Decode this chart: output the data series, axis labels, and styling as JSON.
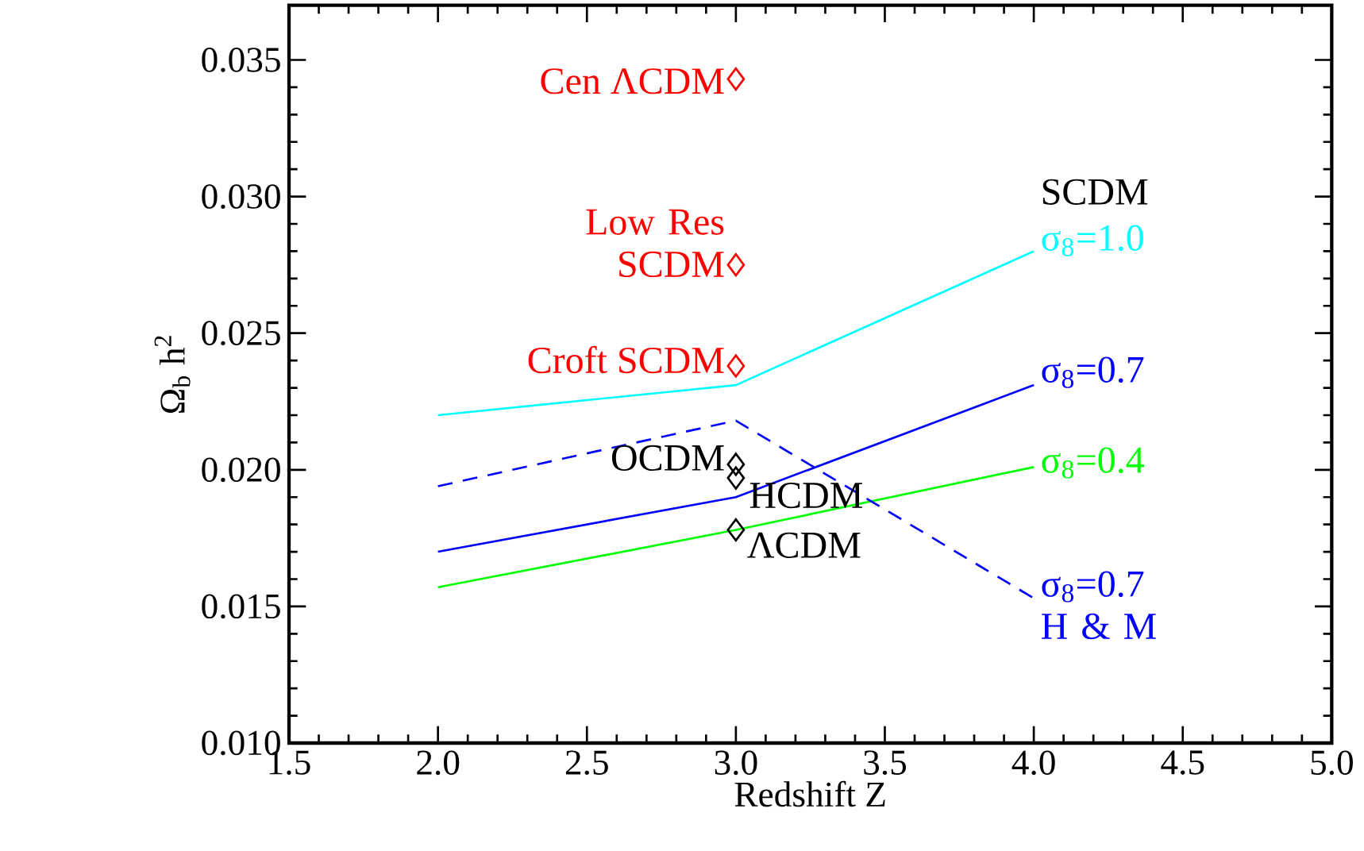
{
  "chart_data": {
    "type": "line",
    "xlabel": "Redshift Z",
    "ylabel": "Ω$_{b}$ h$^{2}$",
    "xlim": [
      1.5,
      5.0
    ],
    "xticks": [
      {
        "value": 1.5,
        "label": "1.5"
      },
      {
        "value": 2.0,
        "label": "2.0"
      },
      {
        "value": 2.5,
        "label": "2.5"
      },
      {
        "value": 3.0,
        "label": "3.0"
      },
      {
        "value": 3.5,
        "label": "3.5"
      },
      {
        "value": 4.0,
        "label": "4.0"
      },
      {
        "value": 4.5,
        "label": "4.5"
      },
      {
        "value": 5.0,
        "label": "5.0"
      }
    ],
    "ylim": [
      0.01,
      0.037
    ],
    "yticks": [
      {
        "value": 0.01,
        "label": "0.010"
      },
      {
        "value": 0.015,
        "label": "0.015"
      },
      {
        "value": 0.02,
        "label": "0.020"
      },
      {
        "value": 0.025,
        "label": "0.025"
      },
      {
        "value": 0.03,
        "label": "0.030"
      },
      {
        "value": 0.035,
        "label": "0.035"
      }
    ],
    "series": [
      {
        "name": "σ$_{8}$=1.0",
        "color": "#00ffff",
        "line_style": "solid",
        "x": [
          2,
          3,
          4
        ],
        "values": [
          0.022,
          0.0231,
          0.028
        ]
      },
      {
        "name": "σ$_{8}$=0.7",
        "color": "#0000ff",
        "line_style": "solid",
        "x": [
          2,
          3,
          4
        ],
        "values": [
          0.017,
          0.019,
          0.0231
        ]
      },
      {
        "name": "σ$_{8}$=0.4",
        "color": "#00ff00",
        "line_style": "solid",
        "x": [
          2,
          3,
          4
        ],
        "values": [
          0.0157,
          0.0178,
          0.0201
        ]
      },
      {
        "name": "σ$_{8}$=0.7 H & M",
        "color": "#0000ff",
        "line_style": "dashed",
        "x": [
          2,
          3,
          4
        ],
        "values": [
          0.0194,
          0.0218,
          0.0153
        ]
      },
      {
        "type": "scatter",
        "name": "Cen ΛCDM",
        "color": "#ff0000",
        "marker": "diamond",
        "x": [
          3
        ],
        "values": [
          0.0343
        ]
      },
      {
        "type": "scatter",
        "name": "Low Res SCDM",
        "color": "#ff0000",
        "marker": "diamond",
        "x": [
          3
        ],
        "values": [
          0.0275
        ]
      },
      {
        "type": "scatter",
        "name": "Croft SCDM",
        "color": "#ff0000",
        "marker": "diamond",
        "x": [
          3
        ],
        "values": [
          0.0238
        ]
      },
      {
        "type": "scatter",
        "name": "OCDM",
        "color": "#000000",
        "marker": "diamond",
        "x": [
          3
        ],
        "values": [
          0.0202
        ]
      },
      {
        "type": "scatter",
        "name": "HCDM",
        "color": "#000000",
        "marker": "diamond",
        "x": [
          3
        ],
        "values": [
          0.0197
        ]
      },
      {
        "type": "scatter",
        "name": "ΛCDM",
        "color": "#000000",
        "marker": "diamond",
        "x": [
          3
        ],
        "values": [
          0.0178
        ]
      }
    ],
    "annotations": [
      {
        "text": "SCDM",
        "x": 4,
        "y": 0.028
      }
    ]
  }
}
